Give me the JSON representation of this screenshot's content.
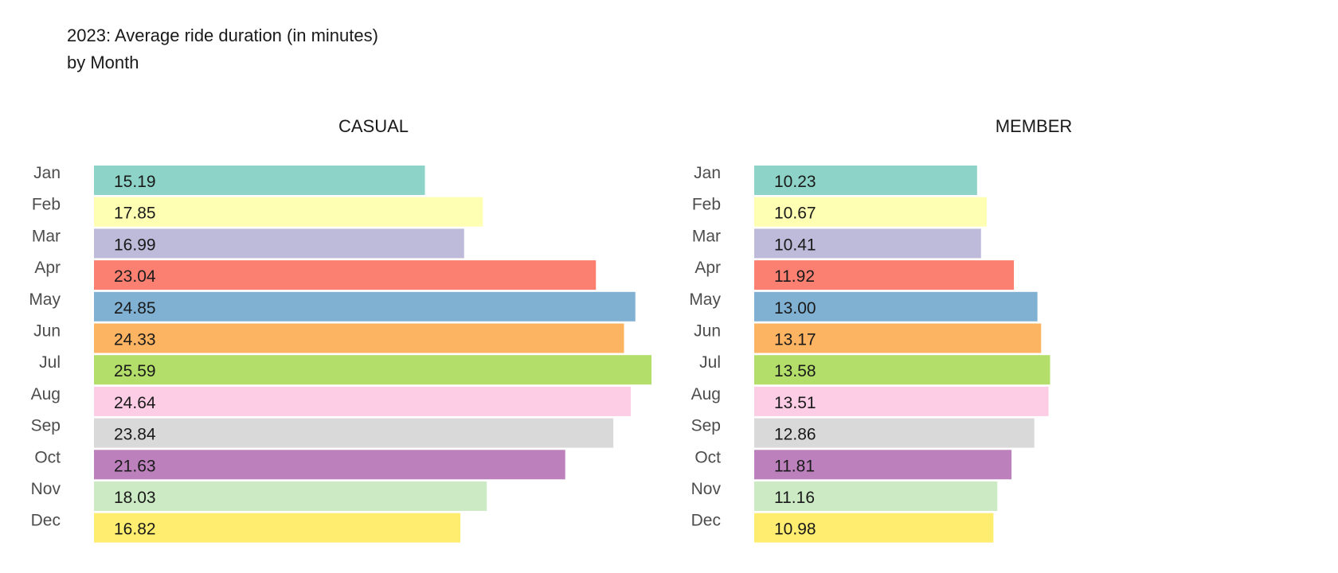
{
  "chart_data": {
    "type": "bar",
    "orientation": "horizontal",
    "title": "2023: Average ride duration (in minutes)",
    "subtitle": "by Month",
    "categories": [
      "Jan",
      "Feb",
      "Mar",
      "Apr",
      "May",
      "Jun",
      "Jul",
      "Aug",
      "Sep",
      "Oct",
      "Nov",
      "Dec"
    ],
    "colors": [
      "#8dd3c7",
      "#ffffb3",
      "#bebada",
      "#fb8072",
      "#80b1d3",
      "#fdb462",
      "#b3de69",
      "#fccde5",
      "#d9d9d9",
      "#bc80bd",
      "#ccebc5",
      "#ffed6f"
    ],
    "grid": false,
    "legend": "none",
    "panels": [
      {
        "title": "CASUAL",
        "xlim": [
          0,
          25.59
        ],
        "values": [
          15.19,
          17.85,
          16.99,
          23.04,
          24.85,
          24.33,
          25.59,
          24.64,
          23.84,
          21.63,
          18.03,
          16.82
        ],
        "labels": [
          "15.19",
          "17.85",
          "16.99",
          "23.04",
          "24.85",
          "24.33",
          "25.59",
          "24.64",
          "23.84",
          "21.63",
          "18.03",
          "16.82"
        ]
      },
      {
        "title": "MEMBER",
        "xlim": [
          0,
          25.59
        ],
        "values": [
          10.23,
          10.67,
          10.41,
          11.92,
          13.0,
          13.17,
          13.58,
          13.51,
          12.86,
          11.81,
          11.16,
          10.98
        ],
        "labels": [
          "10.23",
          "10.67",
          "10.41",
          "11.92",
          "13.00",
          "13.17",
          "13.58",
          "13.51",
          "12.86",
          "11.81",
          "11.16",
          "10.98"
        ]
      }
    ]
  }
}
